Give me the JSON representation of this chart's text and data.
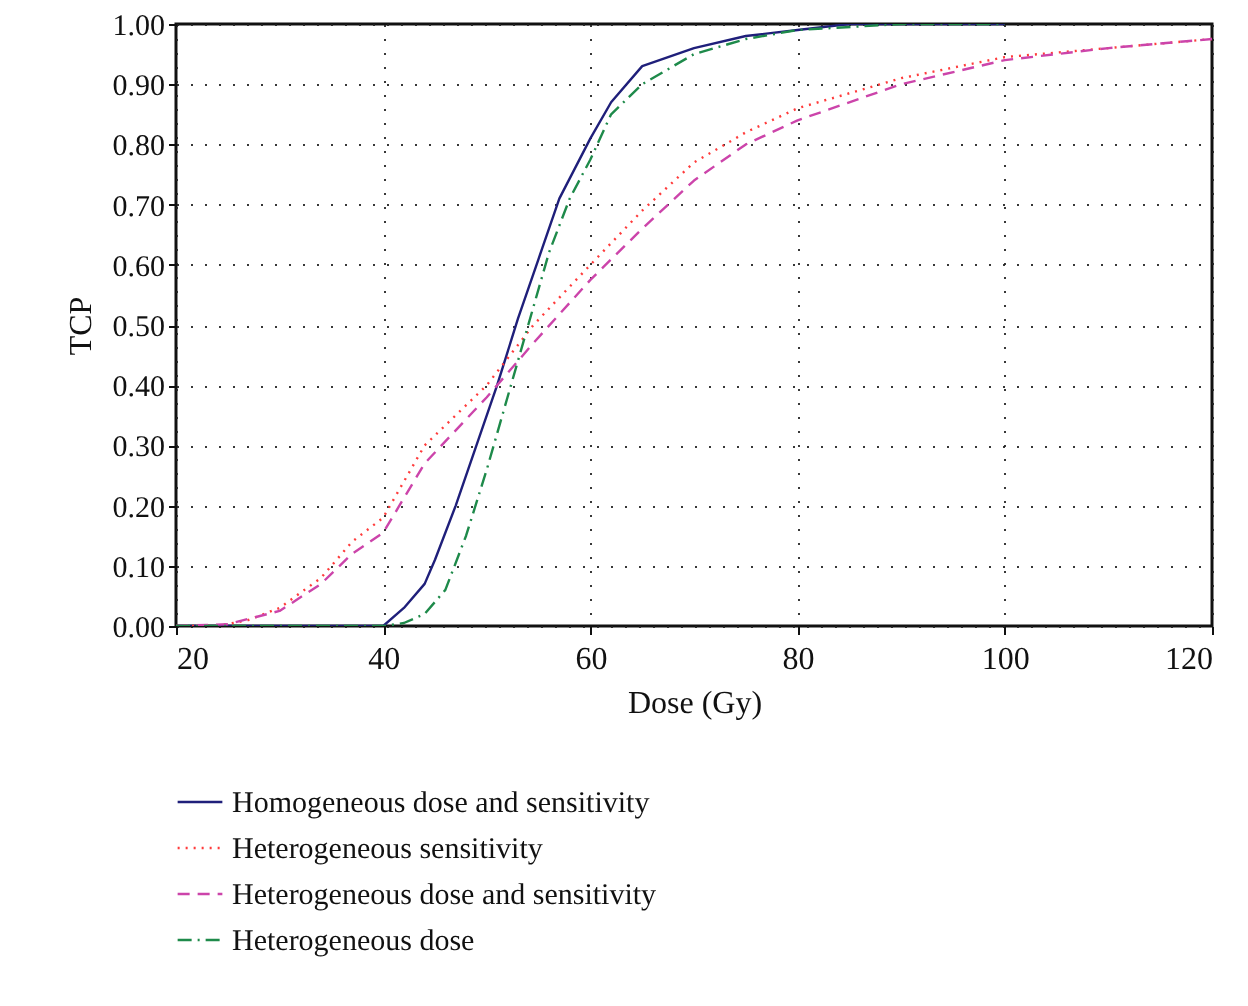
{
  "chart_data": {
    "type": "line",
    "xlabel": "Dose (Gy)",
    "ylabel": "TCP",
    "xlim": [
      20,
      120
    ],
    "ylim": [
      0,
      1
    ],
    "xticks": [
      20,
      40,
      60,
      80,
      100,
      120
    ],
    "yticks": [
      {
        "value": 0,
        "label": "0.00"
      },
      {
        "value": 0.1,
        "label": "0.10"
      },
      {
        "value": 0.2,
        "label": "0.20"
      },
      {
        "value": 0.3,
        "label": "0.30"
      },
      {
        "value": 0.4,
        "label": "0.40"
      },
      {
        "value": 0.5,
        "label": "0.50"
      },
      {
        "value": 0.6,
        "label": "0.60"
      },
      {
        "value": 0.7,
        "label": "0.70"
      },
      {
        "value": 0.8,
        "label": "0.80"
      },
      {
        "value": 0.9,
        "label": "0.90"
      },
      {
        "value": 1,
        "label": "1.00"
      }
    ],
    "grid": true,
    "legend": "bottom",
    "marker": "none",
    "series": [
      {
        "name": "Homogeneous dose and sensitivity",
        "color": "#1f1f7a",
        "line_style": "solid",
        "x": [
          20,
          40,
          42,
          44,
          45,
          47,
          49,
          51,
          53,
          55,
          57,
          60,
          62,
          65,
          70,
          75,
          80,
          85,
          100
        ],
        "values": [
          0,
          0,
          0.03,
          0.07,
          0.11,
          0.2,
          0.3,
          0.4,
          0.51,
          0.61,
          0.71,
          0.81,
          0.87,
          0.93,
          0.96,
          0.98,
          0.99,
          1,
          1
        ]
      },
      {
        "name": "Heterogeneous sensitivity",
        "color": "#ff3b3b",
        "line_style": "dotted",
        "x": [
          20,
          24,
          27,
          30,
          34,
          37,
          40,
          44,
          50,
          54.5,
          60,
          65,
          70,
          75,
          80,
          90,
          100,
          110,
          120
        ],
        "values": [
          0,
          0,
          0.01,
          0.03,
          0.08,
          0.14,
          0.18,
          0.3,
          0.4,
          0.5,
          0.6,
          0.69,
          0.77,
          0.82,
          0.86,
          0.91,
          0.945,
          0.96,
          0.975
        ]
      },
      {
        "name": "Heterogeneous dose and sensitivity",
        "color": "#cc44aa",
        "line_style": "dashed",
        "x": [
          20,
          25,
          30,
          34,
          37,
          40,
          44,
          50,
          54.5,
          60,
          65,
          70,
          75,
          80,
          90,
          100,
          110,
          120
        ],
        "values": [
          0,
          0.003,
          0.025,
          0.07,
          0.12,
          0.155,
          0.27,
          0.38,
          0.47,
          0.575,
          0.66,
          0.74,
          0.8,
          0.84,
          0.9,
          0.94,
          0.96,
          0.975
        ]
      },
      {
        "name": "Heterogeneous dose",
        "color": "#1e8a4a",
        "line_style": "dashdot",
        "x": [
          20,
          40,
          42,
          44,
          46,
          48,
          50,
          52,
          54,
          56,
          58,
          60,
          62,
          65,
          70,
          75,
          80,
          90,
          100
        ],
        "values": [
          0,
          0,
          0.005,
          0.02,
          0.06,
          0.15,
          0.26,
          0.38,
          0.5,
          0.62,
          0.71,
          0.775,
          0.85,
          0.9,
          0.95,
          0.975,
          0.99,
          1,
          1
        ]
      }
    ]
  }
}
